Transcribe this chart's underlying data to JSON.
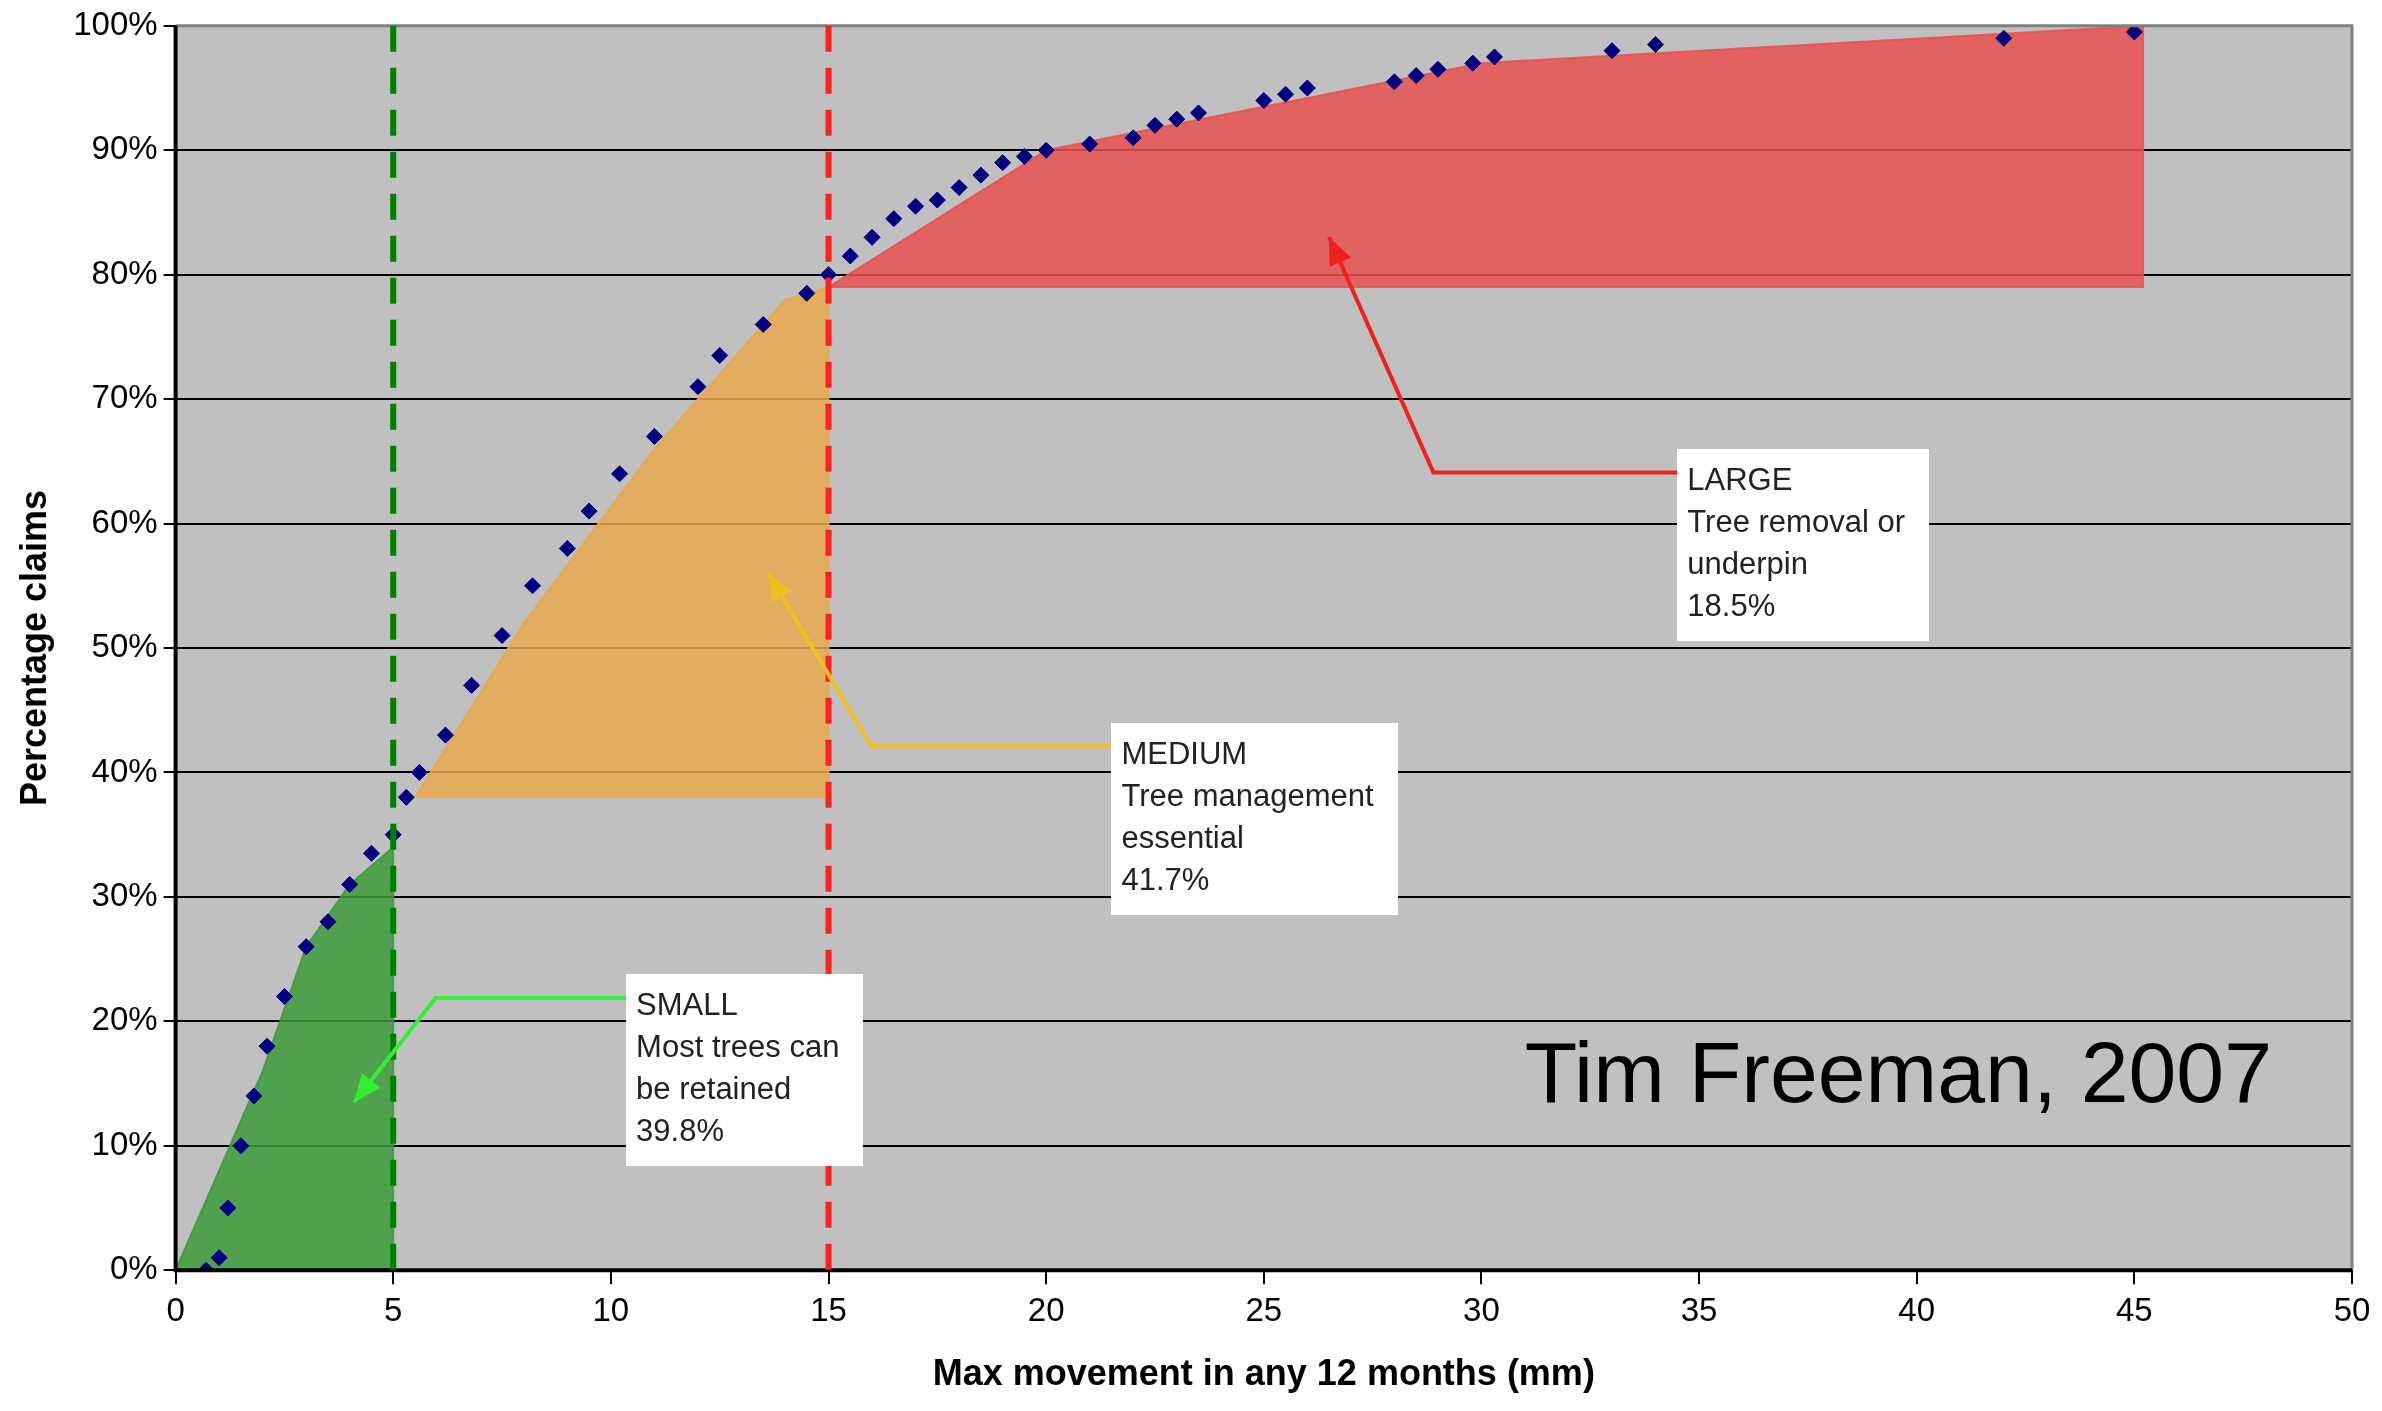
{
  "chart_data": {
    "type": "scatter",
    "xlabel": "Max movement in any 12 months (mm)",
    "ylabel": "Percentage claims",
    "xlim": [
      0,
      50
    ],
    "xticks": [
      0,
      5,
      10,
      15,
      20,
      25,
      30,
      35,
      40,
      45,
      50
    ],
    "ylim": [
      0,
      100
    ],
    "yticks": [
      {
        "value": 0,
        "label": "0%"
      },
      {
        "value": 10,
        "label": "10%"
      },
      {
        "value": 20,
        "label": "20%"
      },
      {
        "value": 30,
        "label": "30%"
      },
      {
        "value": 40,
        "label": "40%"
      },
      {
        "value": 50,
        "label": "50%"
      },
      {
        "value": 60,
        "label": "60%"
      },
      {
        "value": 70,
        "label": "70%"
      },
      {
        "value": 80,
        "label": "80%"
      },
      {
        "value": 90,
        "label": "90%"
      },
      {
        "value": 100,
        "label": "100%"
      }
    ],
    "grid": "y",
    "legend": false,
    "series": [
      {
        "type": "area",
        "color": "#3c9a3c",
        "x": [
          0,
          2,
          3,
          4,
          5,
          5,
          0
        ],
        "values": [
          0,
          16,
          26,
          31,
          34,
          0,
          0
        ]
      },
      {
        "type": "area",
        "color": "#e8a850",
        "x": [
          5.5,
          8,
          11,
          14,
          15,
          15,
          5.5
        ],
        "values": [
          38,
          52,
          66,
          78,
          79,
          38,
          38
        ]
      },
      {
        "type": "area",
        "color": "#e85050",
        "x": [
          15,
          20,
          30,
          45.2,
          45.2,
          15
        ],
        "values": [
          79,
          90,
          97,
          100,
          79,
          79
        ]
      },
      {
        "color": "#000080",
        "marker": "diamond",
        "x": [
          0.7,
          1.0,
          1.2,
          1.5,
          1.8,
          2.1,
          2.5,
          3.0,
          3.5,
          4.0,
          4.5,
          5.0,
          5.3,
          5.6,
          6.2,
          6.8,
          7.5,
          8.2,
          9.0,
          9.5,
          10.2,
          11.0,
          12.0,
          12.5,
          13.5,
          14.5,
          15.0,
          15.5,
          16.0,
          16.5,
          17.0,
          17.5,
          18.0,
          18.5,
          19.0,
          19.5,
          20.0,
          21.0,
          22.0,
          22.5,
          23.0,
          23.5,
          25.0,
          25.5,
          26.0,
          28.0,
          28.5,
          29.0,
          29.8,
          30.3,
          33.0,
          34.0,
          42.0,
          45.0
        ],
        "values": [
          0,
          1,
          5,
          10,
          14,
          18,
          22,
          26,
          28,
          31,
          33.5,
          35,
          38,
          40,
          43,
          47,
          51,
          55,
          58,
          61,
          64,
          67,
          71,
          73.5,
          76,
          78.5,
          80,
          81.5,
          83,
          84.5,
          85.5,
          86,
          87,
          88,
          89,
          89.5,
          90,
          90.5,
          91,
          92,
          92.5,
          93,
          94,
          94.5,
          95,
          95.5,
          96,
          96.5,
          97,
          97.5,
          98,
          98.5,
          99,
          99.5
        ]
      }
    ],
    "ref_lines": [
      {
        "axis": "x",
        "value": 5,
        "color": "#008000",
        "line_style": "dashed"
      },
      {
        "axis": "x",
        "value": 15,
        "color": "#ff2020",
        "line_style": "dashed"
      }
    ],
    "annotations": [
      "SMALL\nMost trees can\nbe retained\n39.8%",
      "MEDIUM\nTree management\nessential\n41.7%",
      "LARGE\nTree removal or\nunderpin\n18.5%",
      "Tim Freeman, 2007"
    ]
  }
}
